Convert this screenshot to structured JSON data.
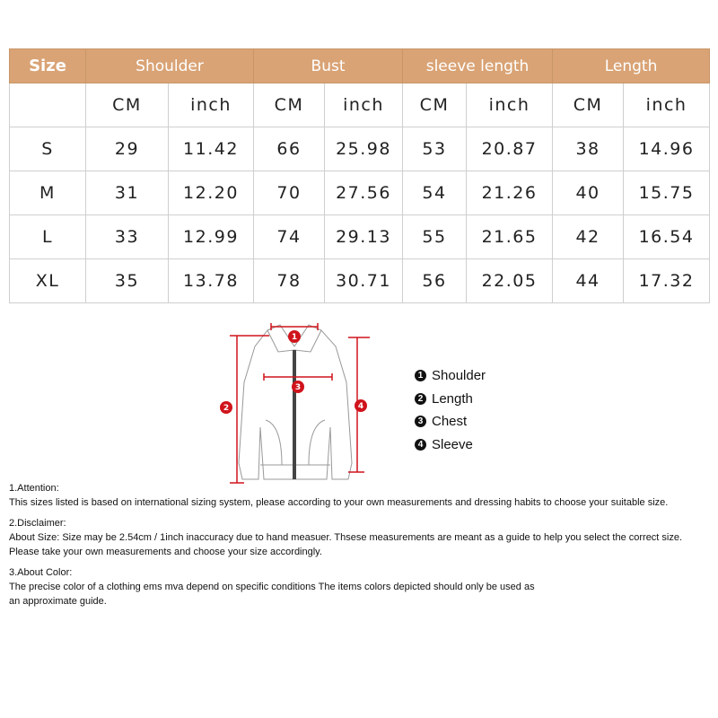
{
  "table": {
    "header": [
      "Size",
      "Shoulder",
      "Bust",
      "sleeve length",
      "Length"
    ],
    "units": [
      "CM",
      "inch",
      "CM",
      "inch",
      "CM",
      "inch",
      "CM",
      "inch"
    ],
    "rows": [
      {
        "size": "S",
        "values": [
          "29",
          "11.42",
          "66",
          "25.98",
          "53",
          "20.87",
          "38",
          "14.96"
        ]
      },
      {
        "size": "M",
        "values": [
          "31",
          "12.20",
          "70",
          "27.56",
          "54",
          "21.26",
          "40",
          "15.75"
        ]
      },
      {
        "size": "L",
        "values": [
          "33",
          "12.99",
          "74",
          "29.13",
          "55",
          "21.65",
          "42",
          "16.54"
        ]
      },
      {
        "size": "XL",
        "values": [
          "35",
          "13.78",
          "78",
          "30.71",
          "56",
          "22.05",
          "44",
          "17.32"
        ]
      }
    ],
    "header_color": "#d9a375"
  },
  "diagram": {
    "markers": [
      "1",
      "2",
      "3",
      "4"
    ],
    "marker_color": "#d0141c",
    "legend": [
      {
        "num": "1",
        "label": "Shoulder"
      },
      {
        "num": "2",
        "label": "Length"
      },
      {
        "num": "3",
        "label": "Chest"
      },
      {
        "num": "4",
        "label": "Sleeve"
      }
    ]
  },
  "notes": [
    {
      "title": "1.Attention:",
      "lines": [
        "This sizes listed is based on international sizing system, please according to your own measurements and dressing habits to choose your suitable size."
      ]
    },
    {
      "title": "2.Disclaimer:",
      "lines": [
        "About Size: Size may be 2.54cm / 1inch inaccuracy due to hand measuer. Thsese measurements are meant as a guide to help you select the correct size.",
        "Please take your own measurements and choose your size accordingly."
      ]
    },
    {
      "title": "3.About Color:",
      "lines": [
        "The precise color of a clothing ems mva depend on specific conditions The items colors depicted should only be used as",
        "an approximate guide."
      ]
    }
  ]
}
